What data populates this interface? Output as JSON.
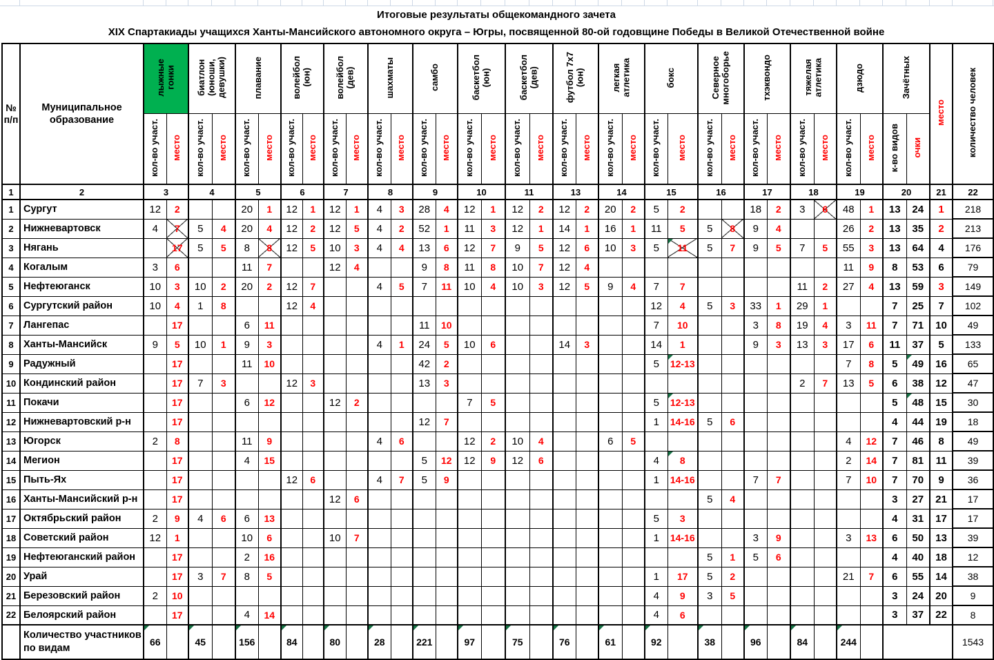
{
  "title": {
    "line1": "Итоговые результаты общекомандного зачета",
    "line2": "XIX Спартакиады учащихся Ханты-Мансийского автономного округа – Югры, посвященной 80-ой годовщине Победы в Великой Отечественной войне"
  },
  "colors": {
    "highlight_green": "#00B050",
    "place_red": "#FF0000",
    "comment_marker_green": "#177245",
    "grid_light": "#CDD8E6"
  },
  "table": {
    "header": {
      "num": "№\nп/п",
      "municipality": "Муниципальное\nобразование",
      "participants": "кол-во участ.",
      "place": "место",
      "final_group": "Зачётных",
      "kinds": "к-во видов",
      "points": "очки",
      "final_place": "место",
      "people": "количество человек"
    },
    "sports": [
      {
        "id": "ski-racing",
        "label": "лыжные\nгонки",
        "col": "3",
        "highlight": true
      },
      {
        "id": "biathlon",
        "label": "биатлон\n(юноши,\nдевушки)",
        "col": "4"
      },
      {
        "id": "swimming",
        "label": "плавание",
        "col": "5"
      },
      {
        "id": "volleyball-boys",
        "label": "волейбол\n(юн)",
        "col": "6"
      },
      {
        "id": "volleyball-girls",
        "label": "волейбол\n(дев)",
        "col": "7"
      },
      {
        "id": "chess",
        "label": "шахматы",
        "col": "8"
      },
      {
        "id": "sambo",
        "label": "самбо",
        "col": "9"
      },
      {
        "id": "basketball-boys",
        "label": "баскетбол\n(юн)",
        "col": "10"
      },
      {
        "id": "basketball-girls",
        "label": "баскетбол\n(дев)",
        "col": "11"
      },
      {
        "id": "football-7x7",
        "label": "футбол 7х7\n(юн)",
        "col": "13"
      },
      {
        "id": "athletics",
        "label": "легкая\nатлетика",
        "col": "14"
      },
      {
        "id": "boxing",
        "label": "бокс",
        "col": "15"
      },
      {
        "id": "northern-all-round",
        "label": "Северное\nмногоборье",
        "col": "16"
      },
      {
        "id": "taekwondo",
        "label": "тхэквондо",
        "col": "17"
      },
      {
        "id": "weightlifting",
        "label": "тяжелая\nатлетика",
        "col": "18"
      },
      {
        "id": "judo",
        "label": "дзюдо",
        "col": "19"
      }
    ],
    "number_row": [
      "1",
      "2",
      "3",
      "4",
      "5",
      "6",
      "7",
      "8",
      "9",
      "10",
      "11",
      "13",
      "14",
      "15",
      "16",
      "17",
      "18",
      "19",
      "20",
      "21",
      "22"
    ],
    "rows": [
      {
        "n": "1",
        "name": "Сургут",
        "res": [
          "12|2",
          "",
          "20|1",
          "12|1",
          "12|1",
          "4|3",
          "28|4",
          "12|1",
          "12|2",
          "12|2",
          "20|2",
          "5|2",
          "",
          "18|2",
          "3|6",
          "48|1"
        ],
        "mx": [
          14
        ],
        "f": [
          "13",
          "24",
          "1",
          "218"
        ]
      },
      {
        "n": "2",
        "name": "Нижневартовск",
        "res": [
          "4|7",
          "5|4",
          "20|4",
          "12|2",
          "12|5",
          "4|2",
          "52|1",
          "11|3",
          "12|1",
          "14|1",
          "16|1",
          "11|5",
          "5|8",
          "9|4",
          "",
          "26|2"
        ],
        "mx": [
          0,
          12
        ],
        "f": [
          "13",
          "35",
          "2",
          "213"
        ]
      },
      {
        "n": "3",
        "name": "Нягань",
        "res": [
          "|17",
          "5|5",
          "8|8",
          "12|5",
          "10|3",
          "4|4",
          "13|6",
          "12|7",
          "9|5",
          "12|6",
          "10|3",
          "5|11",
          "5|7",
          "9|5",
          "7|5",
          "55|3"
        ],
        "mx": [
          0,
          2,
          11
        ],
        "mg": [
          11
        ],
        "f": [
          "13",
          "64",
          "4",
          "176"
        ]
      },
      {
        "n": "4",
        "name": "Когалым",
        "res": [
          "3|6",
          "",
          "11|7",
          "",
          "12|4",
          "",
          "9|8",
          "11|8",
          "10|7",
          "12|4",
          "",
          "",
          "",
          "",
          "",
          "11|9"
        ],
        "f": [
          "8",
          "53",
          "6",
          "79"
        ]
      },
      {
        "n": "5",
        "name": "Нефтеюганск",
        "res": [
          "10|3",
          "10|2",
          "20|2",
          "12|7",
          "",
          "4|5",
          "7|11",
          "10|4",
          "10|3",
          "12|5",
          "9|4",
          "7|7",
          "",
          "",
          "11|2",
          "27|4"
        ],
        "f": [
          "13",
          "59",
          "3",
          "149"
        ]
      },
      {
        "n": "6",
        "name": "Сургутский район",
        "res": [
          "10|4",
          "1|8",
          "",
          "12|4",
          "",
          "",
          "",
          "",
          "",
          "",
          "",
          "12|4",
          "5|3",
          "33|1",
          "29|1",
          ""
        ],
        "f": [
          "7",
          "25",
          "7",
          "102"
        ]
      },
      {
        "n": "7",
        "name": "Лангепас",
        "res": [
          "|17",
          "",
          "6|11",
          "",
          "",
          "",
          "11|10",
          "",
          "",
          "",
          "",
          "7|10",
          "",
          "3|8",
          "19|4",
          "3|11"
        ],
        "f": [
          "7",
          "71",
          "10",
          "49"
        ]
      },
      {
        "n": "8",
        "name": "Ханты-Мансийск",
        "res": [
          "9|5",
          "10|1",
          "9|3",
          "",
          "",
          "4|1",
          "24|5",
          "10|6",
          "",
          "14|3",
          "",
          "14|1",
          "",
          "9|3",
          "13|3",
          "17|6"
        ],
        "f": [
          "11",
          "37",
          "5",
          "133"
        ]
      },
      {
        "n": "9",
        "name": "Радужный",
        "res": [
          "|17",
          "",
          "11|10",
          "",
          "",
          "",
          "42|2",
          "",
          "",
          "",
          "",
          "5|12-13",
          "",
          "",
          "",
          "7|8"
        ],
        "mg": [
          11
        ],
        "pg": true,
        "f": [
          "5",
          "49",
          "16",
          "65"
        ]
      },
      {
        "n": "10",
        "name": "Кондинский район",
        "res": [
          "|17",
          "7|3",
          "",
          "12|3",
          "",
          "",
          "13|3",
          "",
          "",
          "",
          "",
          "",
          "",
          "",
          "2|7",
          "13|5"
        ],
        "f": [
          "6",
          "38",
          "12",
          "47"
        ]
      },
      {
        "n": "11",
        "name": "Покачи",
        "res": [
          "|17",
          "",
          "6|12",
          "",
          "12|2",
          "",
          "",
          "7|5",
          "",
          "",
          "",
          "5|12-13",
          "",
          "",
          "",
          ""
        ],
        "mg": [
          11
        ],
        "pg": true,
        "f": [
          "5",
          "48",
          "15",
          "30"
        ]
      },
      {
        "n": "12",
        "name": "Нижневартовский р-н",
        "res": [
          "|17",
          "",
          "",
          "",
          "",
          "",
          "12|7",
          "",
          "",
          "",
          "",
          "1|14-16",
          "5|6",
          "",
          "",
          ""
        ],
        "f": [
          "4",
          "44",
          "19",
          "18"
        ]
      },
      {
        "n": "13",
        "name": "Югорск",
        "res": [
          "2|8",
          "",
          "11|9",
          "",
          "",
          "4|6",
          "",
          "12|2",
          "10|4",
          "",
          "6|5",
          "",
          "",
          "",
          "",
          "4|12"
        ],
        "f": [
          "7",
          "46",
          "8",
          "49"
        ]
      },
      {
        "n": "14",
        "name": "Мегион",
        "res": [
          "|17",
          "",
          "4|15",
          "",
          "",
          "",
          "5|12",
          "12|9",
          "12|6",
          "",
          "",
          "4|8",
          "",
          "",
          "",
          "2|14"
        ],
        "mg": [
          11
        ],
        "f": [
          "7",
          "81",
          "11",
          "39"
        ]
      },
      {
        "n": "15",
        "name": "Пыть-Ях",
        "res": [
          "|17",
          "",
          "",
          "12|6",
          "",
          "4|7",
          "5|9",
          "",
          "",
          "",
          "",
          "1|14-16",
          "",
          "7|7",
          "",
          "7|10"
        ],
        "f": [
          "7",
          "70",
          "9",
          "36"
        ]
      },
      {
        "n": "16",
        "name": "Ханты-Мансийский р-н",
        "res": [
          "|17",
          "",
          "",
          "",
          "12|6",
          "",
          "",
          "",
          "",
          "",
          "",
          "",
          "5|4",
          "",
          "",
          ""
        ],
        "f": [
          "3",
          "27",
          "21",
          "17"
        ]
      },
      {
        "n": "17",
        "name": "Октябрьский район",
        "res": [
          "2|9",
          "4|6",
          "6|13",
          "",
          "",
          "",
          "",
          "",
          "",
          "",
          "",
          "5|3",
          "",
          "",
          "",
          ""
        ],
        "f": [
          "4",
          "31",
          "17",
          "17"
        ]
      },
      {
        "n": "18",
        "name": "Советский район",
        "res": [
          "12|1",
          "",
          "10|6",
          "",
          "10|7",
          "",
          "",
          "",
          "",
          "",
          "",
          "1|14-16",
          "",
          "3|9",
          "",
          "3|13"
        ],
        "f": [
          "6",
          "50",
          "13",
          "39"
        ]
      },
      {
        "n": "19",
        "name": "Нефтеюганский район",
        "res": [
          "|17",
          "",
          "2|16",
          "",
          "",
          "",
          "",
          "",
          "",
          "",
          "",
          "",
          "5|1",
          "5|6",
          "",
          ""
        ],
        "f": [
          "4",
          "40",
          "18",
          "12"
        ]
      },
      {
        "n": "20",
        "name": "Урай",
        "res": [
          "|17",
          "3|7",
          "8|5",
          "",
          "",
          "",
          "",
          "",
          "",
          "",
          "",
          "1|17",
          "5|2",
          "",
          "",
          "21|7"
        ],
        "f": [
          "6",
          "55",
          "14",
          "38"
        ]
      },
      {
        "n": "21",
        "name": "Березовский район",
        "res": [
          "2|10",
          "",
          "",
          "",
          "",
          "",
          "",
          "",
          "",
          "",
          "",
          "4|9",
          "3|5",
          "",
          "",
          ""
        ],
        "f": [
          "3",
          "24",
          "20",
          "9"
        ]
      },
      {
        "n": "22",
        "name": "Белоярский район",
        "res": [
          "|17",
          "",
          "4|14",
          "",
          "",
          "",
          "",
          "",
          "",
          "",
          "",
          "4|6",
          "",
          "",
          "",
          ""
        ],
        "f": [
          "3",
          "37",
          "22",
          "8"
        ]
      }
    ],
    "footer": {
      "label": "Количество участников\nпо видам",
      "totals": [
        "66",
        "45",
        "156",
        "84",
        "80",
        "28",
        "221",
        "97",
        "75",
        "76",
        "61",
        "92",
        "38",
        "96",
        "84",
        "244"
      ],
      "people": "1543"
    }
  }
}
